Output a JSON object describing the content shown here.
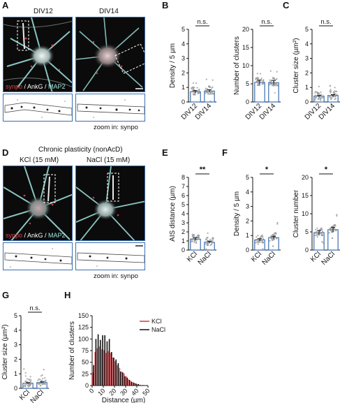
{
  "panel_A": {
    "letter": "A",
    "label_left": "DIV12",
    "label_right": "DIV14",
    "legend": {
      "synpo": "synpo",
      "ankg": " / AnkG / ",
      "map2": "MAP2"
    },
    "zoom_caption": "zoom in: synpo"
  },
  "panel_B": {
    "letter": "B"
  },
  "panel_C": {
    "letter": "C"
  },
  "panel_D": {
    "letter": "D",
    "title": "Chronic plasticity (nonAcD)",
    "label_left": "KCl (15 mM)",
    "label_right": "NaCl (15 mM)",
    "legend": {
      "synpo": "synpo",
      "ankg": " / AnkG / ",
      "map2": "MAP2"
    },
    "zoom_caption": "zoom in: synpo"
  },
  "panel_E": {
    "letter": "E"
  },
  "panel_F": {
    "letter": "F"
  },
  "panel_G": {
    "letter": "G"
  },
  "panel_H": {
    "letter": "H"
  },
  "colors": {
    "bar_outline": "#3a6fb0",
    "kcl": "#d9363e",
    "nacl": "#111111",
    "cyan": "#9fe6e0",
    "dots": "#999999"
  },
  "chart_data": [
    {
      "id": "B1",
      "type": "bar",
      "categories": [
        "DIV12",
        "DIV14"
      ],
      "values": [
        0.7,
        0.75
      ],
      "ylabel": "Density / 5 µm",
      "ylim": [
        0,
        5
      ],
      "yticks": [
        0,
        1,
        2,
        3,
        4,
        5
      ],
      "significance": "n.s."
    },
    {
      "id": "B2",
      "type": "bar",
      "categories": [
        "DIV12",
        "DIV14"
      ],
      "values": [
        5.4,
        5.3
      ],
      "ylabel": "Number of clusters",
      "ylim": [
        0,
        20
      ],
      "yticks": [
        0,
        5,
        10,
        15,
        20
      ],
      "significance": "n.s."
    },
    {
      "id": "C",
      "type": "bar",
      "categories": [
        "DIV12",
        "DIV14"
      ],
      "values": [
        0.4,
        0.45
      ],
      "ylabel": "Cluster size (µm²)",
      "ylim": [
        0,
        5
      ],
      "yticks": [
        0,
        1,
        2,
        3,
        4,
        5
      ],
      "significance": "n.s."
    },
    {
      "id": "E",
      "type": "bar",
      "categories": [
        "KCl",
        "NaCl"
      ],
      "values": [
        1.2,
        0.85
      ],
      "ylabel": "AIS distance (µm)",
      "ylim": [
        0,
        8
      ],
      "yticks": [
        0,
        1,
        2,
        3,
        4,
        5,
        6,
        7,
        8
      ],
      "significance": "**"
    },
    {
      "id": "F1",
      "type": "bar",
      "categories": [
        "KCl",
        "NaCl"
      ],
      "values": [
        0.7,
        0.85
      ],
      "ylabel": "Density / 5 µm",
      "ylim": [
        0,
        5
      ],
      "yticks": [
        0,
        1,
        2,
        3,
        4,
        5
      ],
      "significance": "*"
    },
    {
      "id": "F2",
      "type": "bar",
      "categories": [
        "KCl",
        "NaCl"
      ],
      "values": [
        4.8,
        5.6
      ],
      "ylabel": "Cluster number",
      "ylim": [
        0,
        20
      ],
      "yticks": [
        0,
        5,
        10,
        15,
        20
      ],
      "significance": "*"
    },
    {
      "id": "G",
      "type": "bar",
      "categories": [
        "KCl",
        "NaCl"
      ],
      "values": [
        0.35,
        0.4
      ],
      "ylabel": "Cluster size (µm²)",
      "ylim": [
        0,
        5
      ],
      "yticks": [
        0,
        1,
        2,
        3,
        4,
        5
      ],
      "significance": "n.s."
    },
    {
      "id": "H",
      "type": "bar",
      "xlabel": "Distance (µm)",
      "ylabel": "Number of clusters",
      "xlim": [
        0,
        50
      ],
      "ylim": [
        0,
        150
      ],
      "xticks": [
        0,
        10,
        20,
        30,
        40,
        50
      ],
      "yticks": [
        0,
        25,
        50,
        75,
        100,
        125,
        150
      ],
      "bin_starts": [
        0,
        2,
        4,
        6,
        8,
        10,
        12,
        14,
        16,
        18,
        20,
        22,
        24,
        26,
        28,
        30,
        32,
        34,
        36,
        38,
        40,
        42,
        44,
        46,
        48
      ],
      "series": [
        {
          "name": "KCl",
          "values": [
            28,
            72,
            80,
            84,
            78,
            76,
            70,
            74,
            70,
            60,
            52,
            44,
            38,
            30,
            26,
            20,
            14,
            10,
            7,
            5,
            3,
            2,
            1,
            1,
            0
          ]
        },
        {
          "name": "NaCl",
          "values": [
            44,
            100,
            110,
            98,
            108,
            108,
            95,
            100,
            72,
            60,
            56,
            48,
            30,
            28,
            20,
            17,
            12,
            8,
            6,
            4,
            3,
            1,
            1,
            0,
            0
          ]
        }
      ],
      "legend_position": "top-right"
    }
  ]
}
